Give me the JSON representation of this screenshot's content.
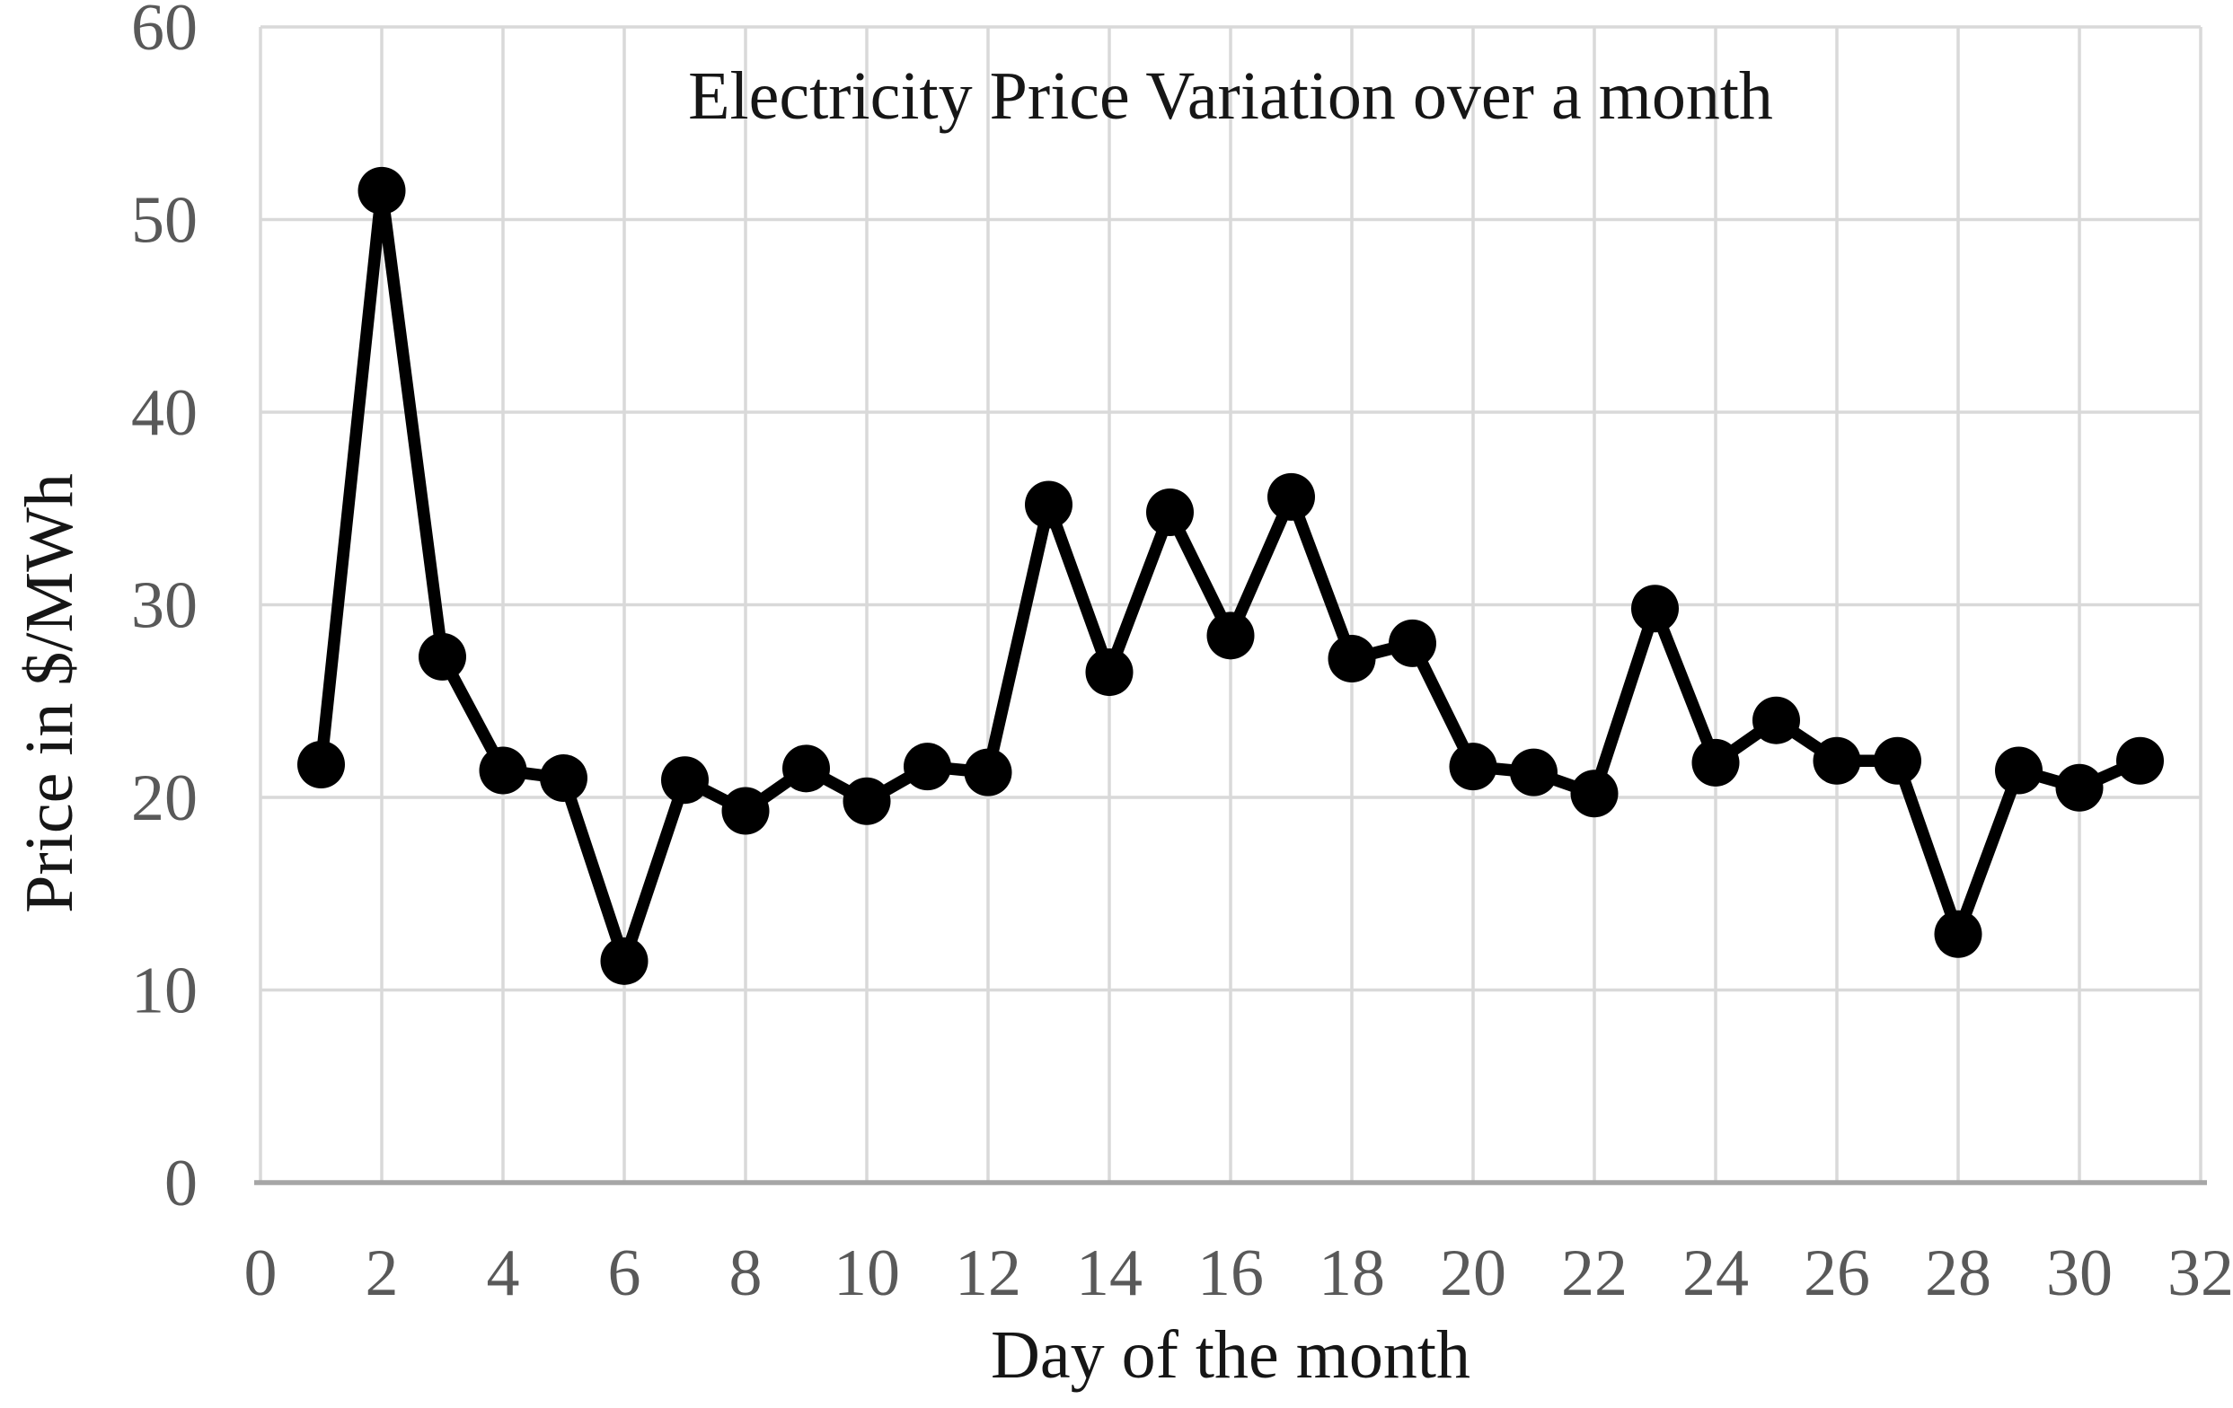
{
  "page": {
    "background_color": "#ffffff"
  },
  "chart_data": {
    "type": "line",
    "title": "Electricity Price Variation over a month",
    "xlabel": "Day of the month",
    "ylabel": "Price in $/MWh",
    "x": [
      1,
      2,
      3,
      4,
      5,
      6,
      7,
      8,
      9,
      10,
      11,
      12,
      13,
      14,
      15,
      16,
      17,
      18,
      19,
      20,
      21,
      22,
      23,
      24,
      25,
      26,
      27,
      28,
      29,
      30,
      31
    ],
    "values": [
      21.7,
      51.5,
      27.3,
      21.4,
      21.0,
      11.5,
      20.9,
      19.3,
      21.5,
      19.8,
      21.6,
      21.3,
      35.2,
      26.5,
      34.8,
      28.4,
      35.6,
      27.2,
      28.0,
      21.6,
      21.3,
      20.2,
      29.8,
      21.8,
      24.0,
      21.9,
      21.9,
      12.9,
      21.4,
      20.5,
      21.9
    ],
    "xlim": [
      0,
      32
    ],
    "ylim": [
      0,
      60
    ],
    "x_ticks": [
      0,
      2,
      4,
      6,
      8,
      10,
      12,
      14,
      16,
      18,
      20,
      22,
      24,
      26,
      28,
      30,
      32
    ],
    "y_ticks": [
      0,
      10,
      20,
      30,
      40,
      50,
      60
    ],
    "grid": true,
    "legend": "none",
    "series_name": "Electricity price",
    "series_color": "#000000",
    "marker": "circle",
    "gridline_color": "#d9d9d9",
    "axis_line_color": "#a6a6a6",
    "tick_label_color": "#595959",
    "title_color": "#161616"
  }
}
